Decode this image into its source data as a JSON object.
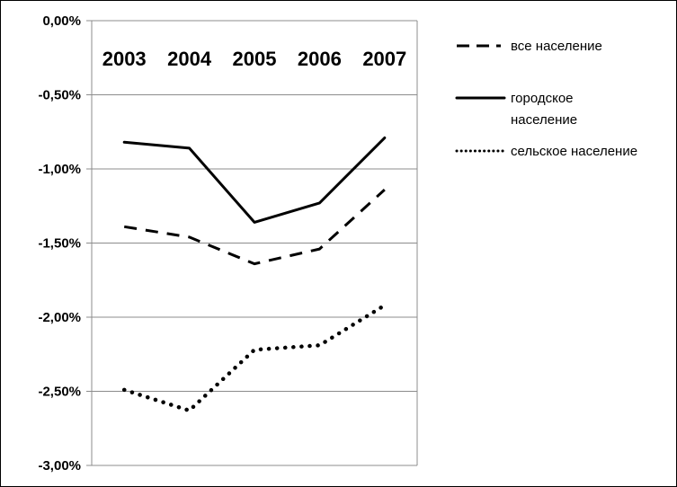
{
  "chart_data": {
    "type": "line",
    "categories": [
      "2003",
      "2004",
      "2005",
      "2006",
      "2007"
    ],
    "ylim": [
      -3.0,
      0.0
    ],
    "ytick_labels": [
      "0,00%",
      "-0,50%",
      "-1,00%",
      "-1,50%",
      "-2,00%",
      "-2,50%",
      "-3,00%"
    ],
    "grid": true,
    "legend_position": "right",
    "series": [
      {
        "name": "все население",
        "values": [
          -1.39,
          -1.46,
          -1.64,
          -1.54,
          -1.14
        ],
        "style": "dashed"
      },
      {
        "name": "городское население",
        "values": [
          -0.82,
          -0.86,
          -1.36,
          -1.23,
          -0.79
        ],
        "style": "solid"
      },
      {
        "name": "сельское население",
        "values": [
          -2.49,
          -2.63,
          -2.22,
          -2.19,
          -1.92
        ],
        "style": "dotted"
      }
    ]
  },
  "colors": {
    "line": "#000000",
    "grid": "#8c8c8c"
  }
}
